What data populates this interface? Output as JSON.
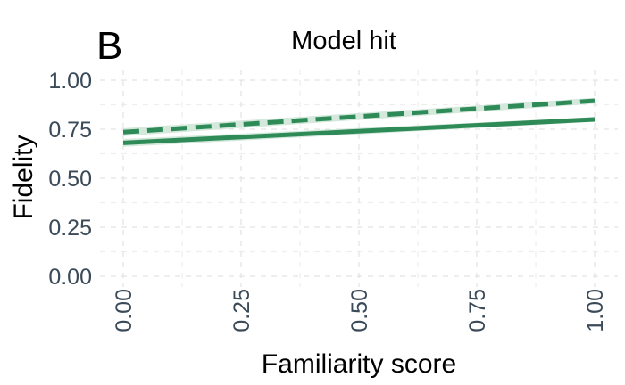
{
  "panel_letter": "B",
  "chart_data": {
    "type": "line",
    "title": "Model hit",
    "xlabel": "Familiarity score",
    "ylabel": "Fidelity",
    "xlim": [
      0,
      1
    ],
    "ylim": [
      0,
      1
    ],
    "x_ticks": [
      "0.00",
      "0.25",
      "0.50",
      "0.75",
      "1.00"
    ],
    "y_ticks": [
      "0.00",
      "0.25",
      "0.50",
      "0.75",
      "1.00"
    ],
    "grid": true,
    "legend": "none",
    "series": [
      {
        "style": "dashed",
        "color": "#2e8b57",
        "band_color": "#cfe6d8",
        "x": [
          0,
          1
        ],
        "y": [
          0.735,
          0.895
        ],
        "ci_low": [
          0.715,
          0.88
        ],
        "ci_high": [
          0.755,
          0.91
        ]
      },
      {
        "style": "solid",
        "color": "#2e8b57",
        "band_color": "#cfe6d8",
        "x": [
          0,
          1
        ],
        "y": [
          0.68,
          0.8
        ],
        "ci_low": [
          0.66,
          0.788
        ],
        "ci_high": [
          0.7,
          0.812
        ]
      }
    ]
  }
}
